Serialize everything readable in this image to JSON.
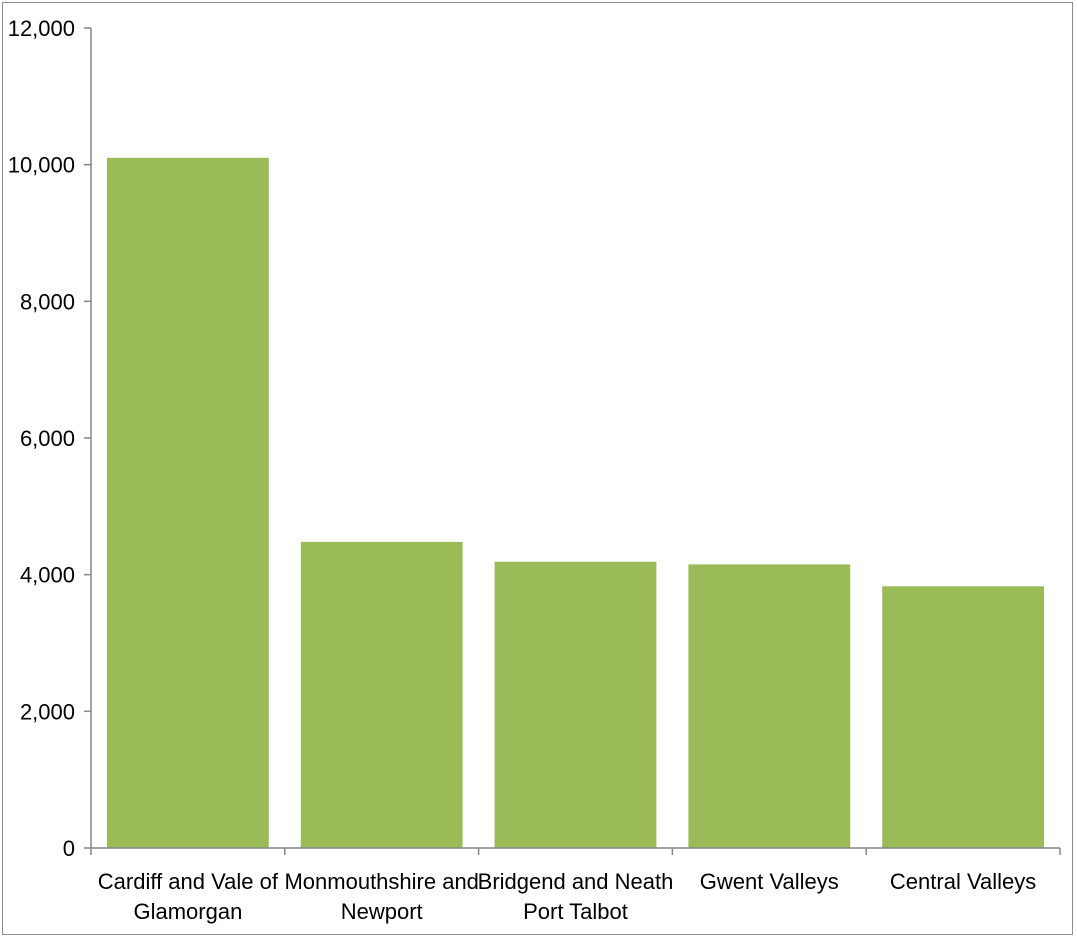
{
  "chart_data": {
    "type": "bar",
    "title": "",
    "xlabel": "",
    "ylabel": "",
    "categories": [
      [
        "Cardiff and Vale of",
        "Glamorgan"
      ],
      [
        "Monmouthshire and",
        "Newport"
      ],
      [
        "Bridgend and Neath",
        "Port Talbot"
      ],
      [
        "Gwent Valleys"
      ],
      [
        "Central Valleys"
      ]
    ],
    "values": [
      10100,
      4480,
      4190,
      4150,
      3830
    ],
    "ylim": [
      0,
      12000
    ],
    "yticks": [
      0,
      2000,
      4000,
      6000,
      8000,
      10000,
      12000
    ],
    "ytick_labels": [
      "0",
      "2,000",
      "4,000",
      "6,000",
      "8,000",
      "10,000",
      "12,000"
    ],
    "grid": false,
    "legend": "none",
    "bar_color": "#9bbb59",
    "axis_color": "#868686"
  }
}
